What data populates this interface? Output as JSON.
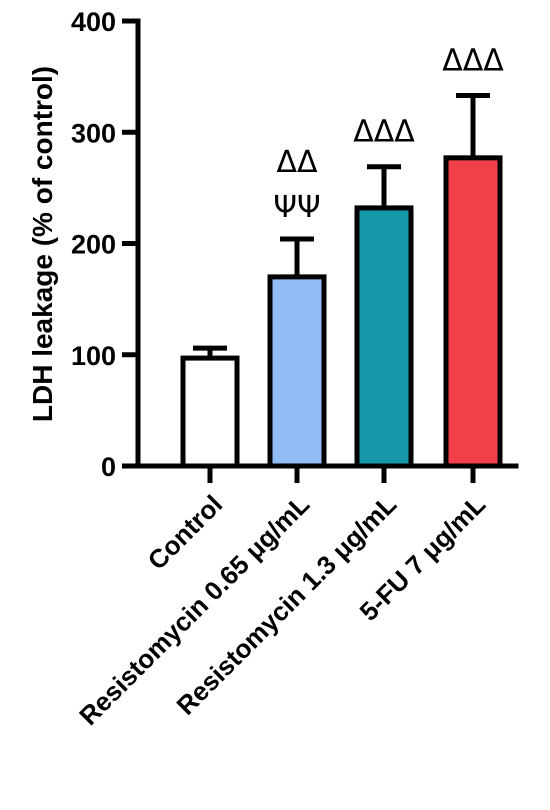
{
  "chart_data": {
    "type": "bar",
    "ylabel": "LDH leakage (% of control)",
    "xlabel": "",
    "ylim": [
      0,
      400
    ],
    "yticks": [
      0,
      100,
      200,
      300,
      400
    ],
    "categories": [
      "Control",
      "Resistomycin 0.65 μg/mL",
      "Resistomycin 1.3 μg/mL",
      "5-FU 7 μg/mL"
    ],
    "values": [
      97,
      170,
      232,
      277
    ],
    "errors": [
      9,
      34,
      37,
      56
    ],
    "colors": [
      "#ffffff",
      "#93bdf5",
      "#1597a8",
      "#f2404a"
    ],
    "annotations": [
      [
        "",
        ""
      ],
      [
        "ΔΔ",
        "ΨΨ"
      ],
      [
        "ΔΔΔ",
        ""
      ],
      [
        "ΔΔΔ",
        ""
      ]
    ]
  }
}
